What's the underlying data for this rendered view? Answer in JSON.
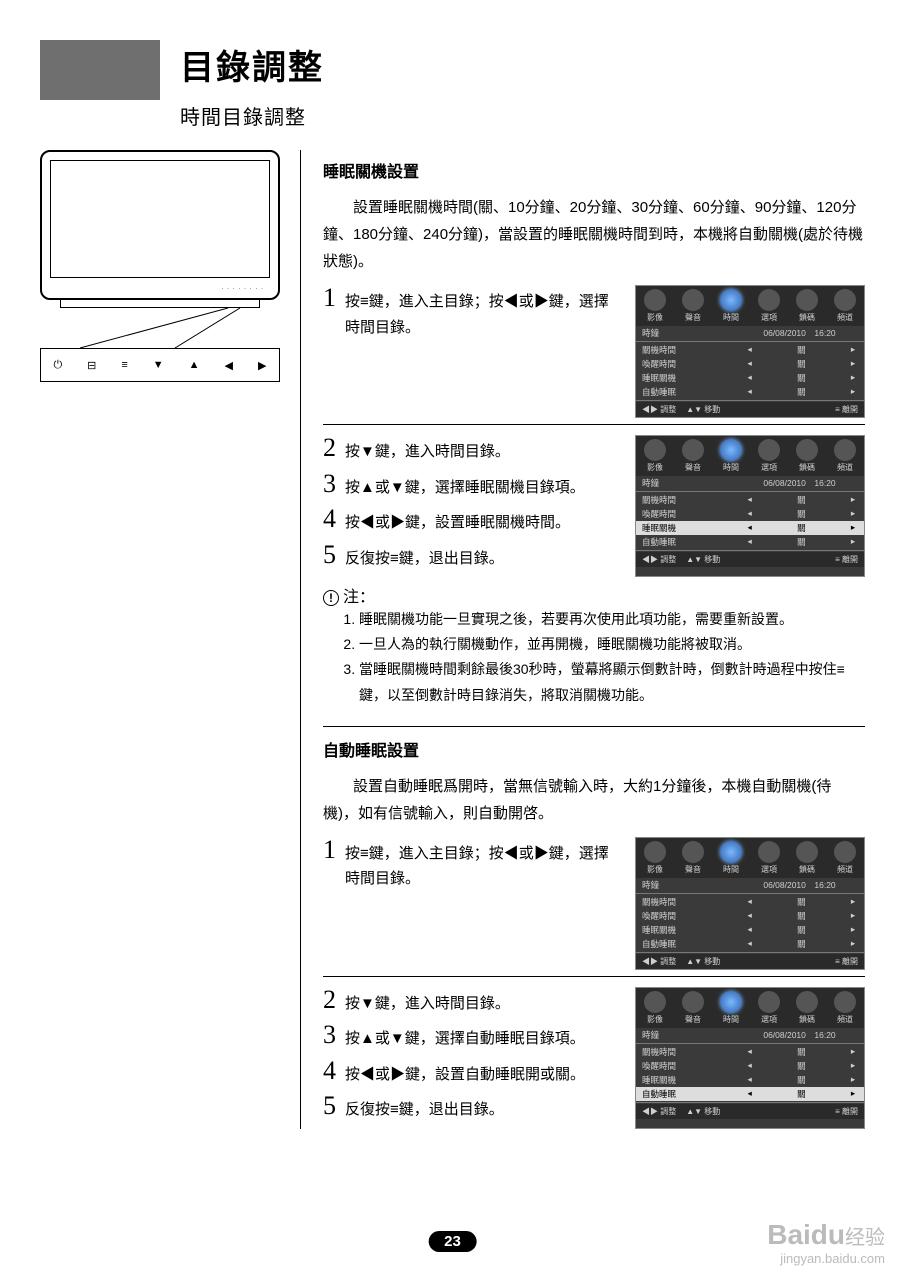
{
  "title": "目錄調整",
  "subtitle": "時間目錄調整",
  "remote_buttons": [
    "⏻",
    "⊟",
    "≡",
    "▼",
    "▲",
    "◀",
    "▶"
  ],
  "sections": {
    "sleep": {
      "heading": "睡眠關機設置",
      "body": "設置睡眠關機時間(關、10分鐘、20分鐘、30分鐘、60分鐘、90分鐘、120分鐘、180分鐘、240分鐘)，當設置的睡眠關機時間到時，本機將自動關機(處於待機狀態)。",
      "steps1": [
        {
          "n": "1",
          "t": "按≡鍵，進入主目錄；按◀或▶鍵，選擇時間目錄。"
        }
      ],
      "steps2": [
        {
          "n": "2",
          "t": "按▼鍵，進入時間目錄。"
        },
        {
          "n": "3",
          "t": "按▲或▼鍵，選擇睡眠關機目錄項。"
        },
        {
          "n": "4",
          "t": "按◀或▶鍵，設置睡眠關機時間。"
        },
        {
          "n": "5",
          "t": "反復按≡鍵，退出目錄。"
        }
      ],
      "note_label": "注：",
      "notes": [
        "睡眠關機功能一旦實現之後，若要再次使用此項功能，需要重新設置。",
        "一旦人為的執行關機動作，並再開機，睡眠關機功能將被取消。",
        "當睡眠關機時間剩餘最後30秒時，螢幕將顯示倒數計時，倒數計時過程中按住≡鍵，以至倒數計時目錄消失，將取消關機功能。"
      ]
    },
    "auto": {
      "heading": "自動睡眠設置",
      "body": "設置自動睡眠爲開時，當無信號輸入時，大約1分鐘後，本機自動關機(待機)，如有信號輸入，則自動開啓。",
      "steps1": [
        {
          "n": "1",
          "t": "按≡鍵，進入主目錄；按◀或▶鍵，選擇時間目錄。"
        }
      ],
      "steps2": [
        {
          "n": "2",
          "t": "按▼鍵，進入時間目錄。"
        },
        {
          "n": "3",
          "t": "按▲或▼鍵，選擇自動睡眠目錄項。"
        },
        {
          "n": "4",
          "t": "按◀或▶鍵，設置自動睡眠開或關。"
        },
        {
          "n": "5",
          "t": "反復按≡鍵，退出目錄。"
        }
      ]
    }
  },
  "osd": {
    "tabs": [
      "影像",
      "聲音",
      "時間",
      "選項",
      "鎖碼",
      "頻道"
    ],
    "selected_tab": 2,
    "rows_date": {
      "label": "時鐘",
      "value": "06/08/2010　16:20"
    },
    "rows": [
      {
        "label": "關機時間",
        "value": "關"
      },
      {
        "label": "喚醒時間",
        "value": "關"
      },
      {
        "label": "睡眠關機",
        "value": "關"
      },
      {
        "label": "自動睡眠",
        "value": "關"
      }
    ],
    "foot": {
      "adjust": "◀▶ 調整",
      "move": "▲▼ 移動",
      "exit": "≡ 離開"
    }
  },
  "osd_highlight": {
    "sleep2": 2,
    "auto2": 3
  },
  "page_number": "23",
  "watermark": {
    "brand": "Baidu",
    "cn": "经验",
    "url": "jingyan.baidu.com"
  }
}
